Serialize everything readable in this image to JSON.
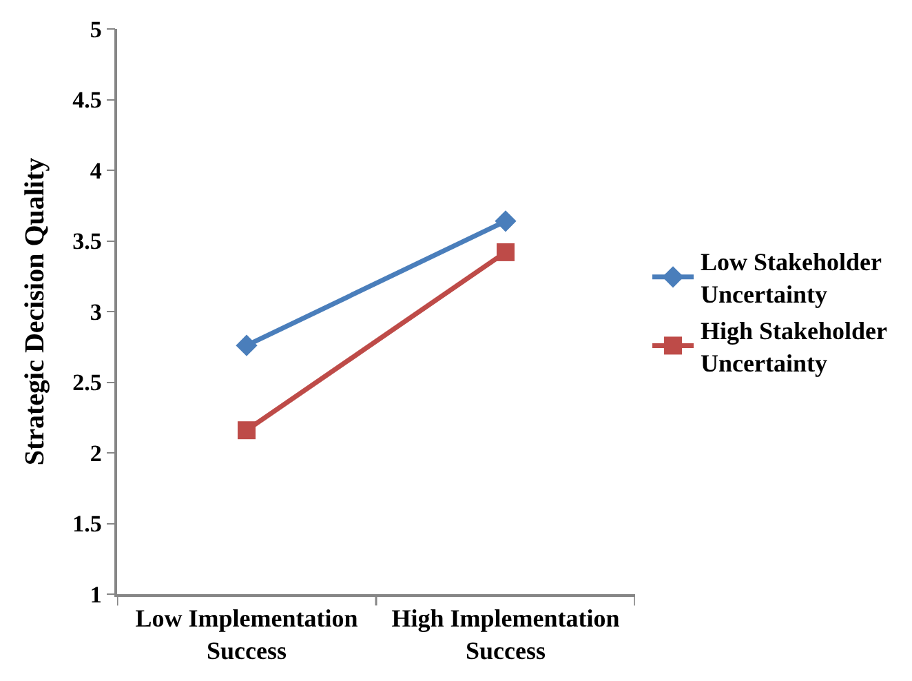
{
  "chart_data": {
    "type": "line",
    "ylabel": "Strategic Decision Quality",
    "categories": [
      "Low Implementation Success",
      "High Implementation Success"
    ],
    "series": [
      {
        "name": "Low Stakeholder Uncertainty",
        "color": "#4a7ebb",
        "values": [
          2.76,
          3.64
        ],
        "marker": "diamond"
      },
      {
        "name": "High Stakeholder Uncertainty",
        "color": "#be4b48",
        "values": [
          2.16,
          3.42
        ],
        "marker": "square"
      }
    ],
    "ylim": [
      1,
      5
    ],
    "yticks": [
      1,
      1.5,
      2,
      2.5,
      3,
      3.5,
      4,
      4.5,
      5
    ],
    "legend": "right",
    "line_style": "solid"
  }
}
